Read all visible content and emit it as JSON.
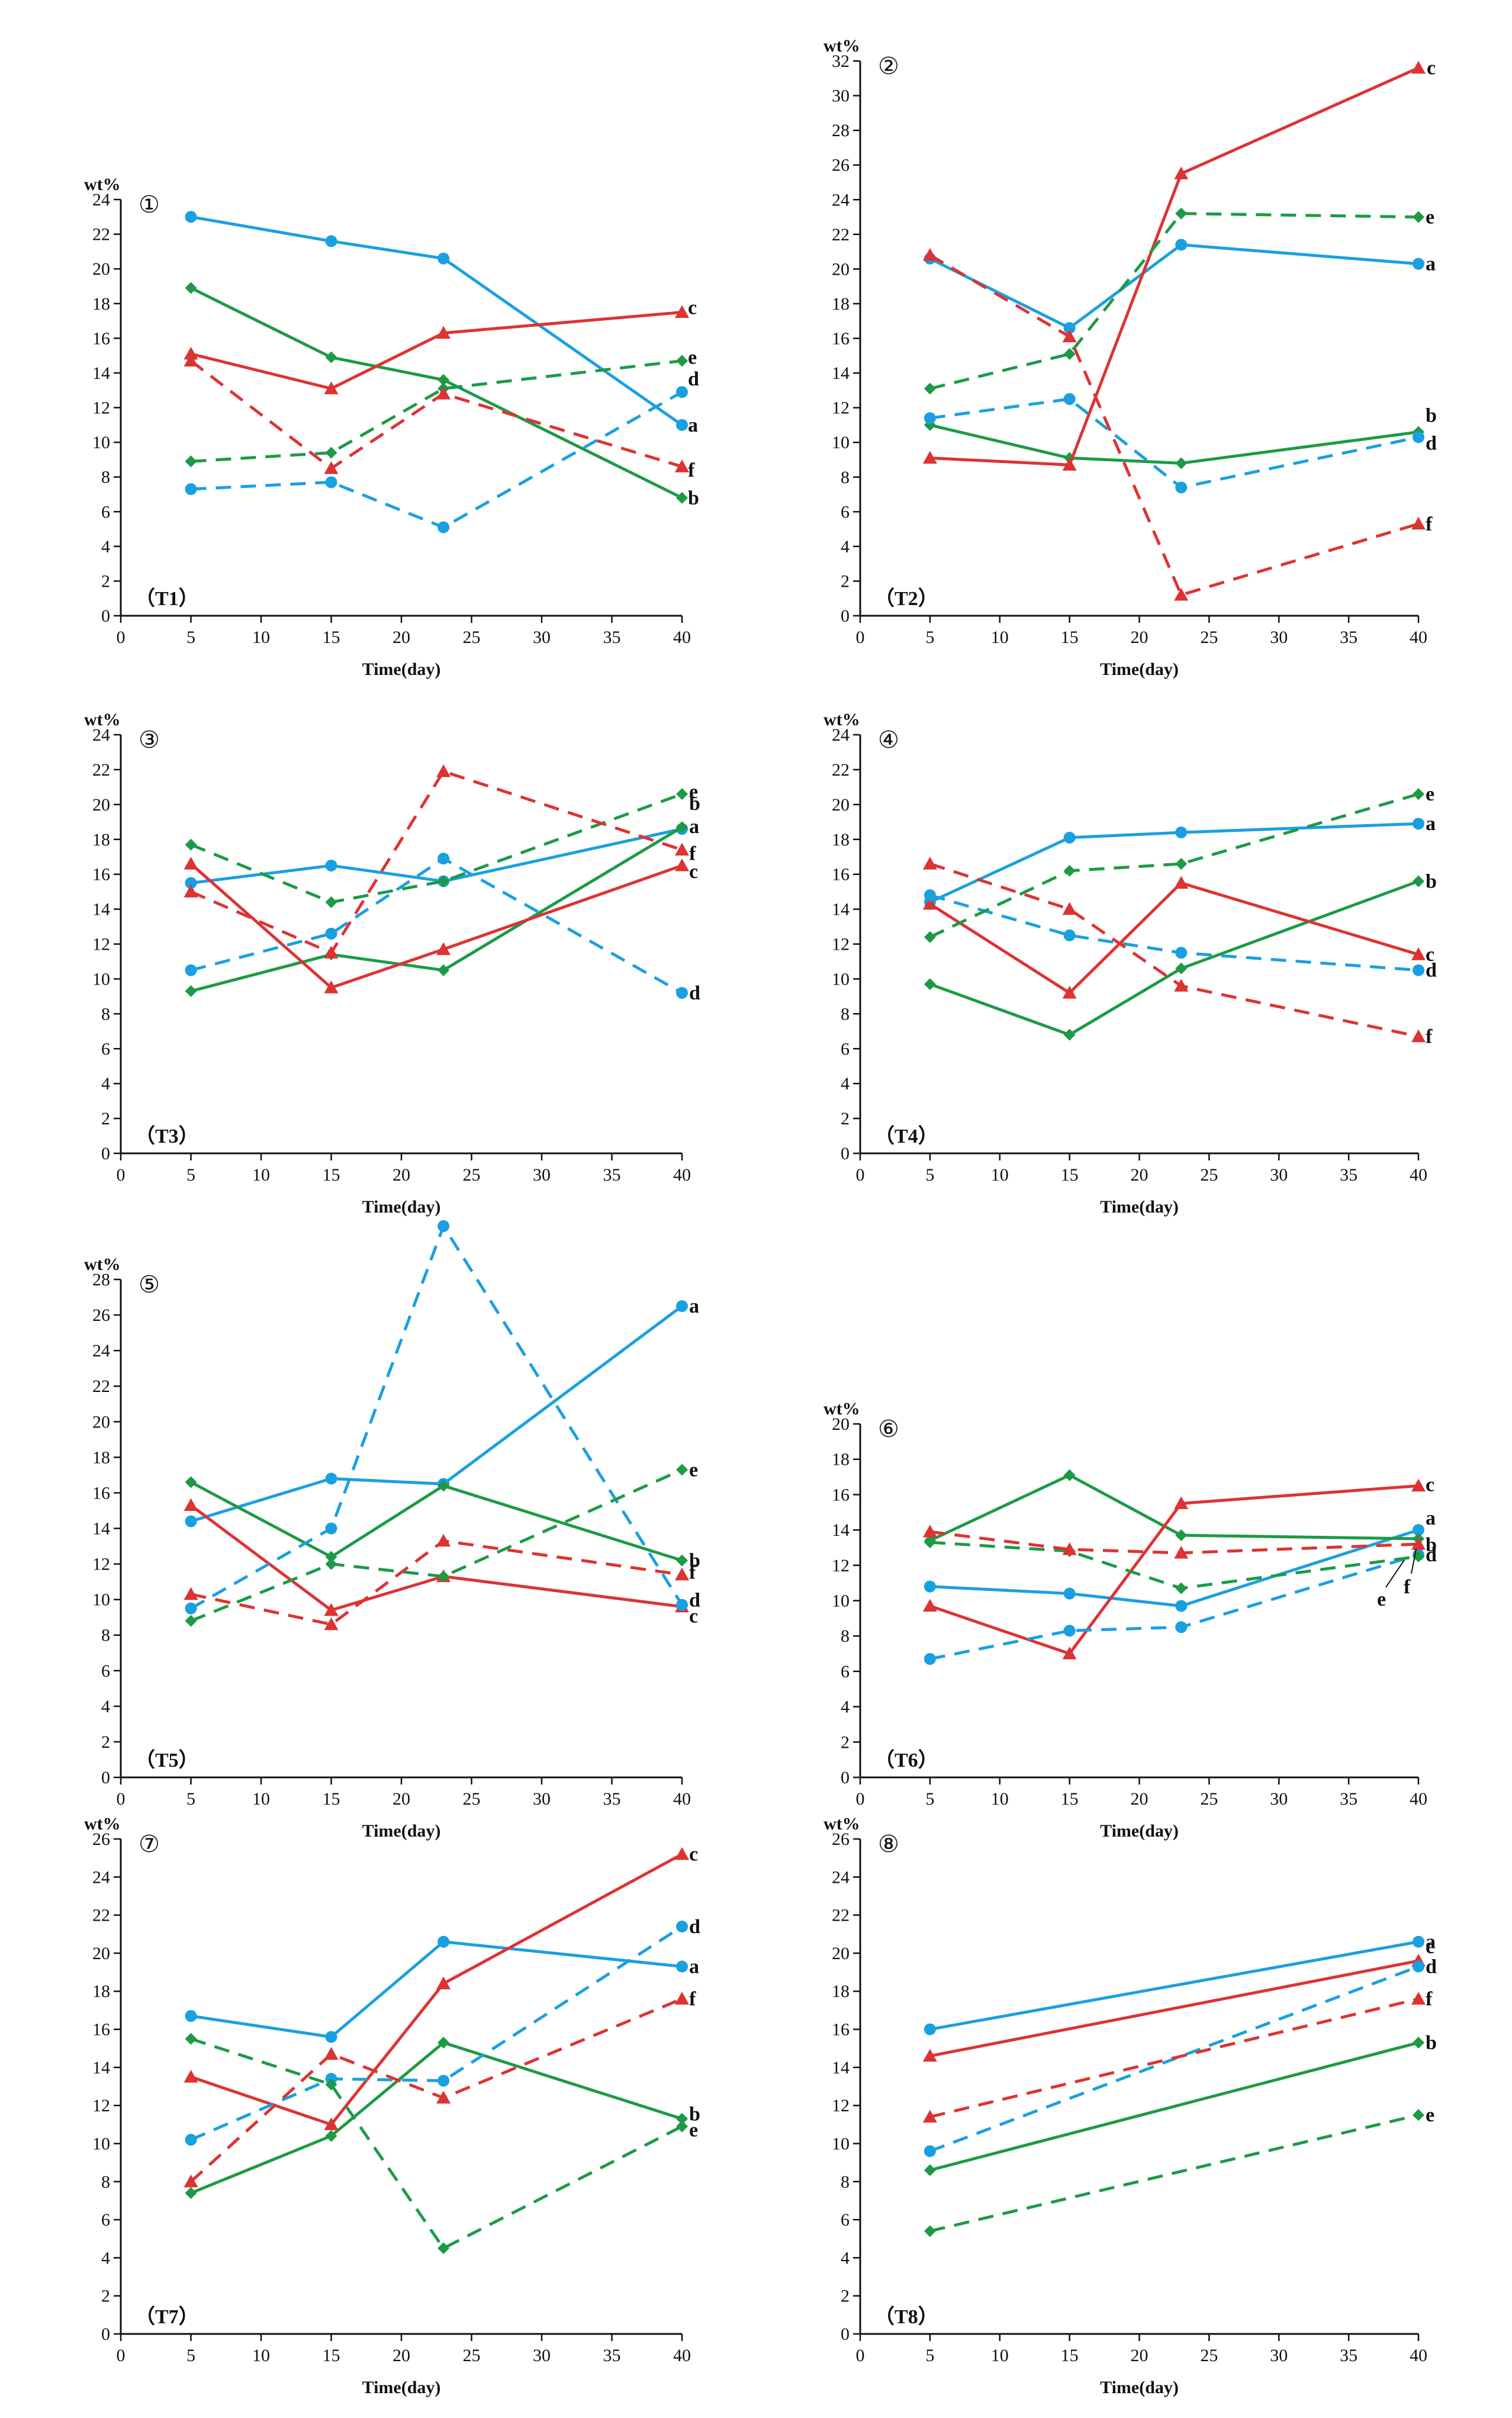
{
  "palette": {
    "blue": "#1aa0e0",
    "green": "#1d9a46",
    "red": "#dd3333",
    "axis": "#111111"
  },
  "chart_data": [
    {
      "type": "line",
      "panel_number": "①",
      "tag": "（T1）",
      "ylabel": "wt%",
      "xlabel": "Time(day)",
      "xlim": [
        0,
        40
      ],
      "ylim": [
        0,
        24
      ],
      "xticks": [
        0,
        5,
        10,
        15,
        20,
        25,
        30,
        35,
        40
      ],
      "yticks": [
        0,
        2,
        4,
        6,
        8,
        10,
        12,
        14,
        16,
        18,
        20,
        22,
        24
      ],
      "x": [
        5,
        15,
        23,
        40
      ],
      "series": [
        {
          "name": "a",
          "values": [
            23,
            21.6,
            20.6,
            11
          ],
          "color": "blue",
          "dash": false,
          "marker": "circle"
        },
        {
          "name": "b",
          "values": [
            18.9,
            14.9,
            13.6,
            6.8
          ],
          "color": "green",
          "dash": false,
          "marker": "diamond"
        },
        {
          "name": "c",
          "values": [
            15.1,
            13.1,
            16.3,
            17.5
          ],
          "color": "red",
          "dash": false,
          "marker": "triangle"
        },
        {
          "name": "d",
          "values": [
            7.3,
            7.7,
            5.1,
            12.9
          ],
          "color": "blue",
          "dash": true,
          "marker": "circle"
        },
        {
          "name": "e",
          "values": [
            8.9,
            9.4,
            13.1,
            14.7
          ],
          "color": "green",
          "dash": true,
          "marker": "diamond"
        },
        {
          "name": "f",
          "values": [
            14.7,
            8.5,
            12.8,
            8.6
          ],
          "color": "red",
          "dash": true,
          "marker": "triangle"
        }
      ]
    },
    {
      "type": "line",
      "panel_number": "②",
      "tag": "（T2）",
      "ylabel": "wt%",
      "xlabel": "Time(day)",
      "xlim": [
        0,
        40
      ],
      "ylim": [
        0,
        32
      ],
      "xticks": [
        0,
        5,
        10,
        15,
        20,
        25,
        30,
        35,
        40
      ],
      "yticks": [
        0,
        2,
        4,
        6,
        8,
        10,
        12,
        14,
        16,
        18,
        20,
        22,
        24,
        26,
        28,
        30,
        32
      ],
      "x": [
        5,
        15,
        23,
        40
      ],
      "series": [
        {
          "name": "a",
          "values": [
            20.6,
            16.6,
            21.4,
            20.3
          ],
          "color": "blue",
          "dash": false,
          "marker": "circle"
        },
        {
          "name": "b",
          "values": [
            11,
            9.1,
            8.8,
            10.6
          ],
          "color": "green",
          "dash": false,
          "marker": "diamond"
        },
        {
          "name": "c",
          "values": [
            9.1,
            8.7,
            25.5,
            31.6
          ],
          "color": "red",
          "dash": false,
          "marker": "triangle"
        },
        {
          "name": "d",
          "values": [
            11.4,
            12.5,
            7.4,
            10.3
          ],
          "color": "blue",
          "dash": true,
          "marker": "circle"
        },
        {
          "name": "e",
          "values": [
            13.1,
            15.1,
            23.2,
            23
          ],
          "color": "green",
          "dash": true,
          "marker": "diamond"
        },
        {
          "name": "f",
          "values": [
            20.8,
            16.1,
            1.2,
            5.3
          ],
          "color": "red",
          "dash": true,
          "marker": "triangle"
        }
      ]
    },
    {
      "type": "line",
      "panel_number": "③",
      "tag": "（T3）",
      "ylabel": "wt%",
      "xlabel": "Time(day)",
      "xlim": [
        0,
        40
      ],
      "ylim": [
        0,
        24
      ],
      "xticks": [
        0,
        5,
        10,
        15,
        20,
        25,
        30,
        35,
        40
      ],
      "yticks": [
        0,
        2,
        4,
        6,
        8,
        10,
        12,
        14,
        16,
        18,
        20,
        22,
        24
      ],
      "x": [
        5,
        15,
        23,
        40
      ],
      "series": [
        {
          "name": "a",
          "values": [
            15.5,
            16.5,
            15.6,
            18.6
          ],
          "color": "blue",
          "dash": false,
          "marker": "circle"
        },
        {
          "name": "b",
          "values": [
            9.3,
            11.4,
            10.5,
            18.7
          ],
          "color": "green",
          "dash": false,
          "marker": "diamond"
        },
        {
          "name": "c",
          "values": [
            16.6,
            9.5,
            11.7,
            16.5
          ],
          "color": "red",
          "dash": false,
          "marker": "triangle"
        },
        {
          "name": "d",
          "values": [
            10.5,
            12.6,
            16.9,
            9.2
          ],
          "color": "blue",
          "dash": true,
          "marker": "circle"
        },
        {
          "name": "e",
          "values": [
            17.7,
            14.4,
            15.6,
            20.6
          ],
          "color": "green",
          "dash": true,
          "marker": "diamond"
        },
        {
          "name": "f",
          "values": [
            15,
            11.5,
            21.9,
            17.4
          ],
          "color": "red",
          "dash": true,
          "marker": "triangle"
        }
      ]
    },
    {
      "type": "line",
      "panel_number": "④",
      "tag": "（T4）",
      "ylabel": "wt%",
      "xlabel": "Time(day)",
      "xlim": [
        0,
        40
      ],
      "ylim": [
        0,
        24
      ],
      "xticks": [
        0,
        5,
        10,
        15,
        20,
        25,
        30,
        35,
        40
      ],
      "yticks": [
        0,
        2,
        4,
        6,
        8,
        10,
        12,
        14,
        16,
        18,
        20,
        22,
        24
      ],
      "x": [
        5,
        15,
        23,
        40
      ],
      "series": [
        {
          "name": "a",
          "values": [
            14.4,
            18.1,
            18.4,
            18.9
          ],
          "color": "blue",
          "dash": false,
          "marker": "circle"
        },
        {
          "name": "b",
          "values": [
            9.7,
            6.8,
            10.6,
            15.6
          ],
          "color": "green",
          "dash": false,
          "marker": "diamond"
        },
        {
          "name": "c",
          "values": [
            14.3,
            9.2,
            15.5,
            11.4
          ],
          "color": "red",
          "dash": false,
          "marker": "triangle"
        },
        {
          "name": "d",
          "values": [
            14.8,
            12.5,
            11.5,
            10.5
          ],
          "color": "blue",
          "dash": true,
          "marker": "circle"
        },
        {
          "name": "e",
          "values": [
            12.4,
            16.2,
            16.6,
            20.6
          ],
          "color": "green",
          "dash": true,
          "marker": "diamond"
        },
        {
          "name": "f",
          "values": [
            16.6,
            14,
            9.6,
            6.7
          ],
          "color": "red",
          "dash": true,
          "marker": "triangle"
        }
      ]
    },
    {
      "type": "line",
      "panel_number": "⑤",
      "tag": "（T5）",
      "ylabel": "wt%",
      "xlabel": "Time(day)",
      "xlim": [
        0,
        40
      ],
      "ylim": [
        0,
        28
      ],
      "xticks": [
        0,
        5,
        10,
        15,
        20,
        25,
        30,
        35,
        40
      ],
      "yticks": [
        0,
        2,
        4,
        6,
        8,
        10,
        12,
        14,
        16,
        18,
        20,
        22,
        24,
        26,
        28
      ],
      "x": [
        5,
        15,
        23,
        40
      ],
      "series": [
        {
          "name": "a",
          "values": [
            14.4,
            16.8,
            16.5,
            26.5
          ],
          "color": "blue",
          "dash": false,
          "marker": "circle"
        },
        {
          "name": "b",
          "values": [
            16.6,
            12.4,
            16.4,
            12.2
          ],
          "color": "green",
          "dash": false,
          "marker": "diamond"
        },
        {
          "name": "c",
          "values": [
            15.3,
            9.4,
            11.3,
            9.6
          ],
          "color": "red",
          "dash": false,
          "marker": "triangle"
        },
        {
          "name": "d",
          "values": [
            9.5,
            14,
            31,
            9.7
          ],
          "color": "blue",
          "dash": true,
          "marker": "circle"
        },
        {
          "name": "e",
          "values": [
            8.8,
            12,
            11.3,
            17.3
          ],
          "color": "green",
          "dash": true,
          "marker": "diamond"
        },
        {
          "name": "f",
          "values": [
            10.3,
            8.6,
            13.3,
            11.4
          ],
          "color": "red",
          "dash": true,
          "marker": "triangle"
        }
      ]
    },
    {
      "type": "line",
      "panel_number": "⑥",
      "tag": "（T6）",
      "ylabel": "wt%",
      "xlabel": "Time(day)",
      "xlim": [
        0,
        40
      ],
      "ylim": [
        0,
        20
      ],
      "xticks": [
        0,
        5,
        10,
        15,
        20,
        25,
        30,
        35,
        40
      ],
      "yticks": [
        0,
        2,
        4,
        6,
        8,
        10,
        12,
        14,
        16,
        18,
        20
      ],
      "x": [
        5,
        15,
        23,
        40
      ],
      "series": [
        {
          "name": "a",
          "values": [
            10.8,
            10.4,
            9.7,
            14
          ],
          "color": "blue",
          "dash": false,
          "marker": "circle"
        },
        {
          "name": "b",
          "values": [
            13.4,
            17.1,
            13.7,
            13.5
          ],
          "color": "green",
          "dash": false,
          "marker": "diamond"
        },
        {
          "name": "c",
          "values": [
            9.7,
            7,
            15.5,
            16.5
          ],
          "color": "red",
          "dash": false,
          "marker": "triangle"
        },
        {
          "name": "d",
          "values": [
            6.7,
            8.3,
            8.5,
            12.6
          ],
          "color": "blue",
          "dash": true,
          "marker": "circle"
        },
        {
          "name": "e",
          "values": [
            13.3,
            12.8,
            10.7,
            12.5
          ],
          "color": "green",
          "dash": true,
          "marker": "diamond"
        },
        {
          "name": "f",
          "values": [
            13.9,
            12.9,
            12.7,
            13.2
          ],
          "color": "red",
          "dash": true,
          "marker": "triangle"
        }
      ]
    },
    {
      "type": "line",
      "panel_number": "⑦",
      "tag": "（T7）",
      "ylabel": "wt%",
      "xlabel": "Time(day)",
      "xlim": [
        0,
        40
      ],
      "ylim": [
        0,
        26
      ],
      "xticks": [
        0,
        5,
        10,
        15,
        20,
        25,
        30,
        35,
        40
      ],
      "yticks": [
        0,
        2,
        4,
        6,
        8,
        10,
        12,
        14,
        16,
        18,
        20,
        22,
        24,
        26
      ],
      "x": [
        5,
        15,
        23,
        40
      ],
      "series": [
        {
          "name": "a",
          "values": [
            16.7,
            15.6,
            20.6,
            19.3
          ],
          "color": "blue",
          "dash": false,
          "marker": "circle"
        },
        {
          "name": "b",
          "values": [
            7.4,
            10.4,
            15.3,
            11.3
          ],
          "color": "green",
          "dash": false,
          "marker": "diamond"
        },
        {
          "name": "c",
          "values": [
            13.5,
            11,
            18.4,
            25.2
          ],
          "color": "red",
          "dash": false,
          "marker": "triangle"
        },
        {
          "name": "d",
          "values": [
            10.2,
            13.4,
            13.3,
            21.4
          ],
          "color": "blue",
          "dash": true,
          "marker": "circle"
        },
        {
          "name": "e",
          "values": [
            15.5,
            13.1,
            4.5,
            10.9
          ],
          "color": "green",
          "dash": true,
          "marker": "diamond"
        },
        {
          "name": "f",
          "values": [
            8,
            14.7,
            12.4,
            17.6
          ],
          "color": "red",
          "dash": true,
          "marker": "triangle"
        }
      ]
    },
    {
      "type": "line",
      "panel_number": "⑧",
      "tag": "（T8）",
      "ylabel": "wt%",
      "xlabel": "Time(day)",
      "xlim": [
        0,
        40
      ],
      "ylim": [
        0,
        26
      ],
      "xticks": [
        0,
        5,
        10,
        15,
        20,
        25,
        30,
        35,
        40
      ],
      "yticks": [
        0,
        2,
        4,
        6,
        8,
        10,
        12,
        14,
        16,
        18,
        20,
        22,
        24,
        26
      ],
      "x": [
        5,
        40
      ],
      "series": [
        {
          "name": "a",
          "values": [
            16,
            20.6
          ],
          "color": "blue",
          "dash": false,
          "marker": "circle"
        },
        {
          "name": "b",
          "values": [
            8.6,
            15.3
          ],
          "color": "green",
          "dash": false,
          "marker": "diamond"
        },
        {
          "name": "c",
          "values": [
            14.6,
            19.6
          ],
          "color": "red",
          "dash": false,
          "marker": "triangle"
        },
        {
          "name": "d",
          "values": [
            9.6,
            19.3
          ],
          "color": "blue",
          "dash": true,
          "marker": "circle"
        },
        {
          "name": "e",
          "values": [
            5.4,
            11.5
          ],
          "color": "green",
          "dash": true,
          "marker": "diamond"
        },
        {
          "name": "f",
          "values": [
            11.4,
            17.6
          ],
          "color": "red",
          "dash": true,
          "marker": "triangle"
        }
      ]
    }
  ]
}
